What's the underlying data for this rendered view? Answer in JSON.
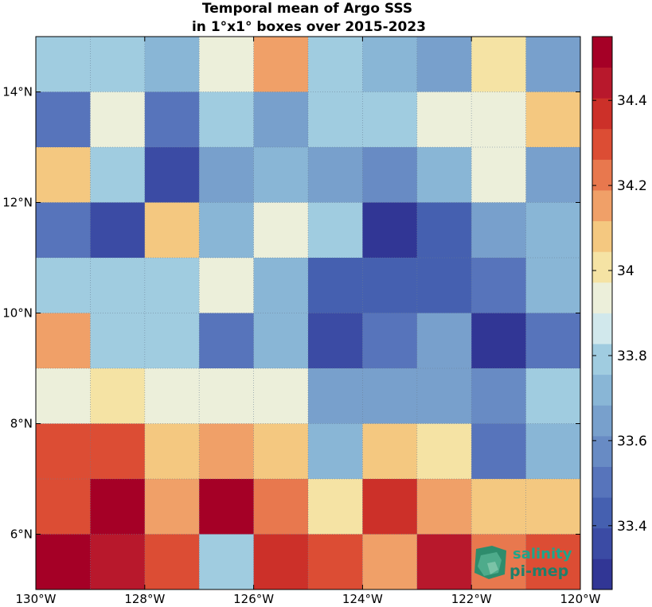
{
  "chart_data": {
    "type": "heatmap",
    "title": [
      "Temporal mean of Argo SSS",
      "in 1°x1° boxes over 2015-2023"
    ],
    "x_centers": [
      -129.5,
      -128.5,
      -127.5,
      -126.5,
      -125.5,
      -124.5,
      -123.5,
      -122.5,
      -121.5,
      -120.5
    ],
    "y_centers": [
      14.5,
      13.5,
      12.5,
      11.5,
      10.5,
      9.5,
      8.5,
      7.5,
      6.5,
      5.5
    ],
    "xlim": [
      -130,
      -120
    ],
    "ylim": [
      5,
      15
    ],
    "x_ticks": [
      {
        "value": -130,
        "label": "130°W"
      },
      {
        "value": -128,
        "label": "128°W"
      },
      {
        "value": -126,
        "label": "126°W"
      },
      {
        "value": -124,
        "label": "124°W"
      },
      {
        "value": -122,
        "label": "122°W"
      },
      {
        "value": -120,
        "label": "120°W"
      }
    ],
    "y_ticks": [
      {
        "value": 14,
        "label": "14°N"
      },
      {
        "value": 12,
        "label": "12°N"
      },
      {
        "value": 10,
        "label": "10°N"
      },
      {
        "value": 8,
        "label": "8°N"
      },
      {
        "value": 6,
        "label": "6°N"
      }
    ],
    "values": [
      [
        33.76,
        33.76,
        33.7,
        33.92,
        34.16,
        33.76,
        33.72,
        33.62,
        34.02,
        33.66
      ],
      [
        33.47,
        33.96,
        33.52,
        33.82,
        33.66,
        33.8,
        33.76,
        33.92,
        33.96,
        34.08
      ],
      [
        34.08,
        33.82,
        33.39,
        33.68,
        33.7,
        33.64,
        33.58,
        33.72,
        33.96,
        33.62
      ],
      [
        33.5,
        33.39,
        34.08,
        33.74,
        33.96,
        33.82,
        33.32,
        33.45,
        33.66,
        33.72
      ],
      [
        33.82,
        33.76,
        33.82,
        33.92,
        33.7,
        33.42,
        33.45,
        33.45,
        33.52,
        33.72
      ],
      [
        34.16,
        33.82,
        33.82,
        33.47,
        33.7,
        33.34,
        33.53,
        33.66,
        33.32,
        33.5
      ],
      [
        33.96,
        34.04,
        33.96,
        33.96,
        33.92,
        33.68,
        33.66,
        33.66,
        33.58,
        33.82
      ],
      [
        34.32,
        34.28,
        34.08,
        34.16,
        34.08,
        33.74,
        34.08,
        34.04,
        33.47,
        33.74
      ],
      [
        34.32,
        34.52,
        34.16,
        34.52,
        34.2,
        34.02,
        34.36,
        34.16,
        34.08,
        34.08
      ],
      [
        34.52,
        34.44,
        34.28,
        33.82,
        34.36,
        34.28,
        34.16,
        34.44,
        34.2,
        34.28
      ]
    ],
    "colorbar": {
      "min": 33.25,
      "max": 34.55,
      "colors": [
        "#313695",
        "#3b4ba4",
        "#4560b0",
        "#5774bb",
        "#688bc4",
        "#78a0cc",
        "#89b6d6",
        "#a0cce0",
        "#d1e8ec",
        "#ecefda",
        "#f5e3a4",
        "#f4c880",
        "#f0a068",
        "#e8784e",
        "#dc4d34",
        "#cc3029",
        "#b8182c",
        "#a50026"
      ],
      "ticks": [
        {
          "value": 33.4,
          "label": "33.4"
        },
        {
          "value": 33.6,
          "label": "33.6"
        },
        {
          "value": 33.8,
          "label": "33.8"
        },
        {
          "value": 34.0,
          "label": "34"
        },
        {
          "value": 34.2,
          "label": "34.2"
        },
        {
          "value": 34.4,
          "label": "34.4"
        }
      ]
    },
    "grid": true,
    "legend": "colorbar-right"
  },
  "logo": {
    "line1": "salinity",
    "line2": "pi-mep"
  }
}
